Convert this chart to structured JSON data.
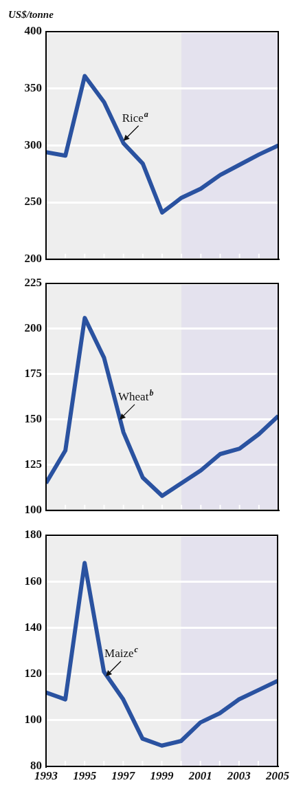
{
  "chart_data": [
    {
      "type": "line",
      "ylabel": "US$/tonne",
      "x": [
        1993,
        1994,
        1995,
        1996,
        1997,
        1998,
        1999,
        2000,
        2001,
        2002,
        2003,
        2004,
        2005
      ],
      "series": [
        {
          "color": "#2a52a0",
          "values": [
            294,
            291,
            361,
            338,
            302,
            284,
            241,
            254,
            262,
            274,
            283,
            292,
            300
          ]
        }
      ],
      "xlim": [
        1993,
        2005
      ],
      "xticks": [
        1993,
        {
          "value": 1994,
          "label": null
        },
        1995,
        {
          "value": 1996,
          "label": null
        },
        1997,
        {
          "value": 1998,
          "label": null
        },
        1999,
        {
          "value": 2000,
          "label": null
        },
        2001,
        {
          "value": 2002,
          "label": null
        },
        2003,
        {
          "value": 2004,
          "label": null
        },
        2005
      ],
      "ylim": [
        200,
        400
      ],
      "yticks": [
        200,
        250,
        300,
        350,
        400
      ],
      "grid": "y",
      "legend": false,
      "tick_labels": "y",
      "bands": [
        {
          "axis": "x",
          "from": 2000,
          "to": 2005,
          "color": "#e4e2ee"
        }
      ],
      "annotations": [
        {
          "text": "Rice$^{a}$",
          "x": 1997,
          "y": 304
        }
      ]
    },
    {
      "type": "line",
      "x": [
        1993,
        1994,
        1995,
        1996,
        1997,
        1998,
        1999,
        2000,
        2001,
        2002,
        2003,
        2004,
        2005
      ],
      "series": [
        {
          "color": "#2a52a0",
          "values": [
            115,
            133,
            206,
            184,
            143,
            118,
            108,
            115,
            122,
            131,
            134,
            142,
            152
          ]
        }
      ],
      "xlim": [
        1993,
        2005
      ],
      "xticks": [
        1993,
        {
          "value": 1994,
          "label": null
        },
        1995,
        {
          "value": 1996,
          "label": null
        },
        1997,
        {
          "value": 1998,
          "label": null
        },
        1999,
        {
          "value": 2000,
          "label": null
        },
        2001,
        {
          "value": 2002,
          "label": null
        },
        2003,
        {
          "value": 2004,
          "label": null
        },
        2005
      ],
      "ylim": [
        100,
        225
      ],
      "yticks": [
        100,
        125,
        150,
        175,
        200,
        225
      ],
      "grid": "y",
      "legend": false,
      "tick_labels": "y",
      "bands": [
        {
          "axis": "x",
          "from": 2000,
          "to": 2005,
          "color": "#e4e2ee"
        }
      ],
      "annotations": [
        {
          "text": "Wheat$^{b}$",
          "x": 1996.8,
          "y": 150
        }
      ]
    },
    {
      "type": "line",
      "x": [
        1993,
        1994,
        1995,
        1996,
        1997,
        1998,
        1999,
        2000,
        2001,
        2002,
        2003,
        2004,
        2005
      ],
      "series": [
        {
          "color": "#2a52a0",
          "values": [
            112,
            109,
            168,
            121,
            109,
            92,
            89,
            91,
            99,
            103,
            109,
            113,
            117
          ]
        }
      ],
      "xlim": [
        1993,
        2005
      ],
      "xticks": [
        1993,
        {
          "value": 1994,
          "label": null
        },
        1995,
        {
          "value": 1996,
          "label": null
        },
        1997,
        {
          "value": 1998,
          "label": null
        },
        1999,
        {
          "value": 2000,
          "label": null
        },
        2001,
        {
          "value": 2002,
          "label": null
        },
        2003,
        {
          "value": 2004,
          "label": null
        },
        2005
      ],
      "ylim": [
        80,
        180
      ],
      "yticks": [
        80,
        100,
        120,
        140,
        160,
        180
      ],
      "grid": "y",
      "legend": false,
      "bands": [
        {
          "axis": "x",
          "from": 2000,
          "to": 2005,
          "color": "#e4e2ee"
        }
      ],
      "annotations": [
        {
          "text": "Maize$^{c}$",
          "x": 1996.1,
          "y": 119
        }
      ]
    }
  ]
}
